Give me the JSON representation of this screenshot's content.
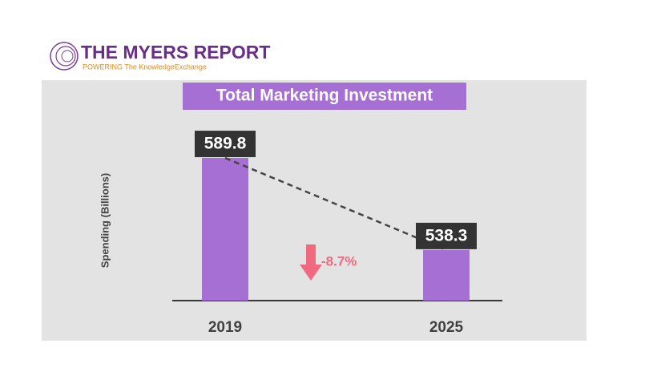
{
  "brand": {
    "name": "THE MYERS REPORT",
    "tagline": "POWERING The KnowledgeExchange"
  },
  "chart_data": {
    "type": "bar",
    "title": "Total Marketing Investment",
    "y_label": "Spending (Billions)",
    "categories": [
      "2019",
      "2025"
    ],
    "values": [
      589.8,
      538.3
    ],
    "color": "#a56fd4",
    "ylim": [
      510,
      610
    ],
    "annotation": "-8.7%",
    "trend_line": true
  }
}
